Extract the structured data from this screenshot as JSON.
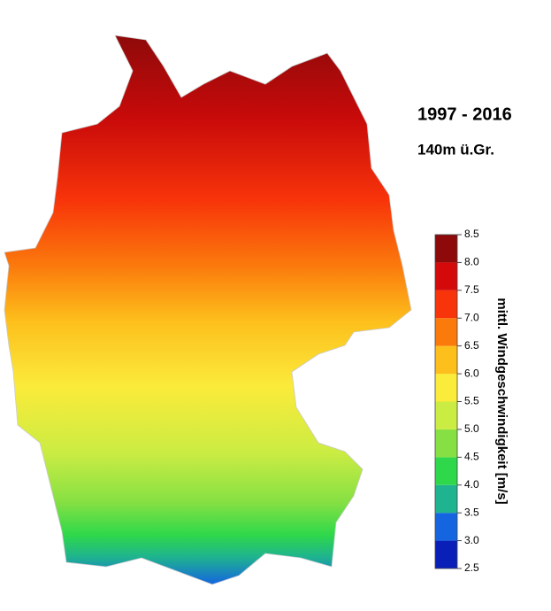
{
  "header": {
    "title": "1997 - 2016",
    "subtitle": "140m ü.Gr."
  },
  "colorbar": {
    "label": "mittl. Windgeschwindigkeit [m/s]",
    "ticks": [
      2.5,
      {
        "value": 3,
        "label": "3.0"
      },
      3.5,
      {
        "value": 4,
        "label": "4.0"
      },
      4.5,
      {
        "value": 5,
        "label": "5.0"
      },
      5.5,
      {
        "value": 6,
        "label": "6.0"
      },
      6.5,
      {
        "value": 7,
        "label": "7.0"
      },
      7.5,
      {
        "value": 8,
        "label": "8.0"
      },
      8.5
    ],
    "colors": [
      "#0a1fb8",
      "#1565e0",
      "#1fb38f",
      "#2ed84a",
      "#86e043",
      "#cbec43",
      "#fbeb3a",
      "#fdbf1c",
      "#fb7a0c",
      "#f8340a",
      "#d40a0a",
      "#8e0a0a"
    ]
  }
}
